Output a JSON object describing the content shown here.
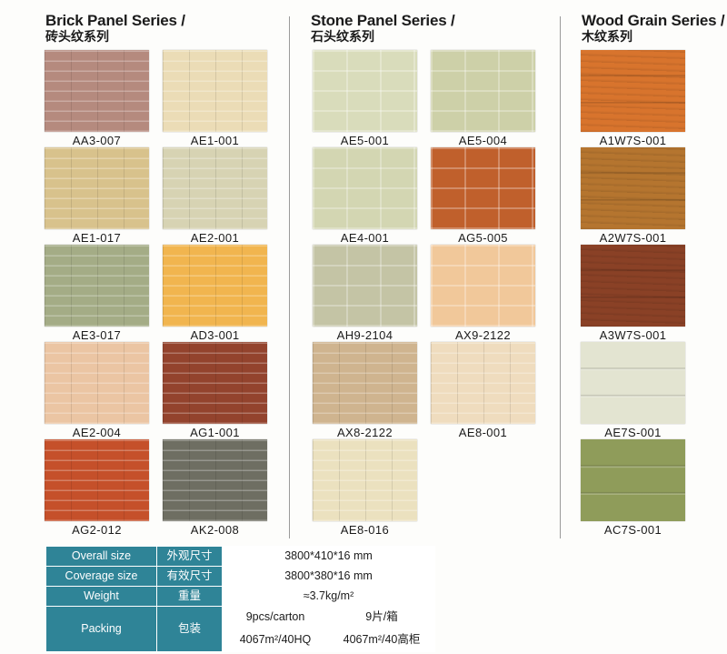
{
  "series": [
    {
      "title_en": "Brick Panel Series /",
      "title_cn": "砖头纹系列"
    },
    {
      "title_en": "Stone Panel Series /",
      "title_cn": "石头纹系列"
    },
    {
      "title_en": "Wood Grain Series /",
      "title_cn": "木纹系列"
    }
  ],
  "swatches": [
    {
      "code": "AA3-007",
      "color": "#b58a7e"
    },
    {
      "code": "AE1-001",
      "color": "#ebdcb6"
    },
    {
      "code": "AE5-001",
      "color": "#d9dcbb"
    },
    {
      "code": "AE5-004",
      "color": "#cdd0a8"
    },
    {
      "code": "A1W7S-001",
      "color": "#d8742d"
    },
    {
      "code": "AE1-017",
      "color": "#d8c28c"
    },
    {
      "code": "AE2-001",
      "color": "#d7d3b3"
    },
    {
      "code": "AE4-001",
      "color": "#d3d6b2"
    },
    {
      "code": "AG5-005",
      "color": "#c0602c"
    },
    {
      "code": "A2W7S-001",
      "color": "#b5752f"
    },
    {
      "code": "AE3-017",
      "color": "#a4ac86"
    },
    {
      "code": "AD3-001",
      "color": "#f1b54f"
    },
    {
      "code": "AH9-2104",
      "color": "#c4c4a5"
    },
    {
      "code": "AX9-2122",
      "color": "#f1c89a"
    },
    {
      "code": "A3W7S-001",
      "color": "#8a4126"
    },
    {
      "code": "AE2-004",
      "color": "#ebc5a3"
    },
    {
      "code": "AG1-001",
      "color": "#93432d"
    },
    {
      "code": "AX8-2122",
      "color": "#cfb48f"
    },
    {
      "code": "AE8-001",
      "color": "#efdcbe"
    },
    {
      "code": "AE7S-001",
      "color": "#e3e4d1"
    },
    {
      "code": "AG2-012",
      "color": "#c5502a"
    },
    {
      "code": "AK2-008",
      "color": "#6e6e62"
    },
    {
      "code": "AE8-016",
      "color": "#ebe1bf"
    },
    {
      "code": "AC7S-001",
      "color": "#8f9c5a"
    }
  ],
  "spec": {
    "overall_en": "Overall size",
    "overall_cn": "外观尺寸",
    "overall_val": "3800*410*16 mm",
    "coverage_en": "Coverage size",
    "coverage_cn": "有效尺寸",
    "coverage_val": "3800*380*16 mm",
    "weight_en": "Weight",
    "weight_cn": "重量",
    "weight_val": "≈3.7kg/m²",
    "packing_en": "Packing",
    "packing_cn": "包装",
    "packing_pcs_en": "9pcs/carton",
    "packing_pcs_cn": "9片/箱",
    "packing_hq_en": "4067m²/40HQ",
    "packing_hq_cn": "4067m²/40高柜"
  },
  "colors": {
    "table_header": "#2f8497",
    "divider": "#9a9a9a"
  }
}
